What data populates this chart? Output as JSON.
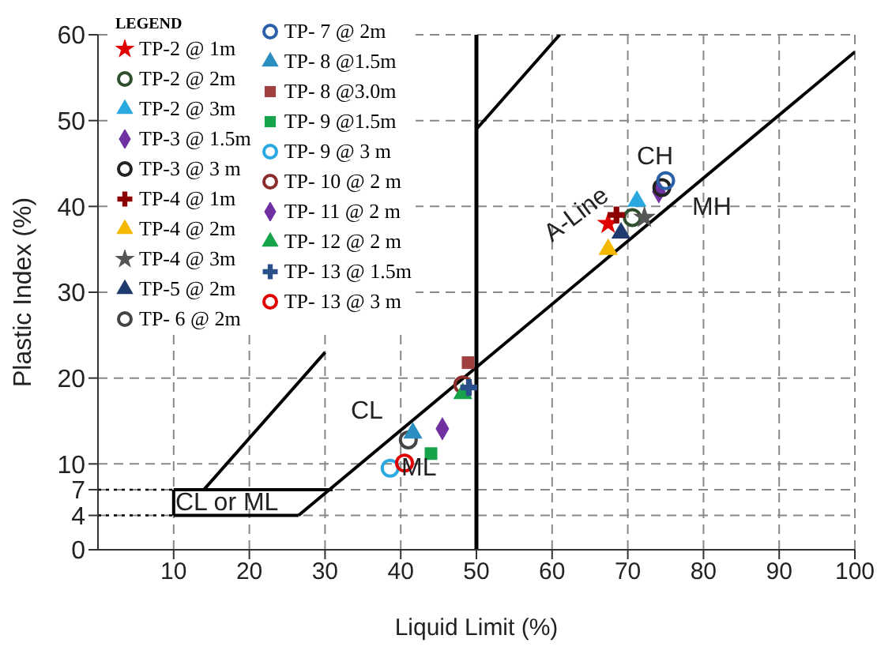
{
  "chart_data": {
    "type": "scatter",
    "xlabel": "Liquid Limit (%)",
    "ylabel": "Plastic Index (%)",
    "legend_title": "LEGEND",
    "legend": "top left",
    "grid": true,
    "xlim": [
      0,
      100
    ],
    "xticks": [
      10,
      20,
      30,
      40,
      50,
      60,
      70,
      80,
      90,
      100
    ],
    "ylim": [
      0,
      60
    ],
    "yticks": [
      0,
      4,
      7,
      10,
      20,
      30,
      40,
      50,
      60
    ],
    "series": [
      {
        "name": "TP-2 @ 1m",
        "color": "#e00000",
        "marker": "star",
        "x": [
          67.4
        ],
        "values": [
          38
        ]
      },
      {
        "name": "TP-2 @ 2m",
        "color": "#2f4f2f",
        "marker": "circle",
        "x": [
          70.6
        ],
        "values": [
          38.7
        ]
      },
      {
        "name": "TP-2 @ 3m",
        "color": "#29a9e0",
        "marker": "triangle",
        "x": [
          71.2
        ],
        "values": [
          40.6
        ]
      },
      {
        "name": "TP-3 @ 1.5m",
        "color": "#7030a0",
        "marker": "diamond",
        "x": [
          74.1
        ],
        "values": [
          41.7
        ]
      },
      {
        "name": "TP-3 @ 3 m",
        "color": "#222222",
        "marker": "circle",
        "x": [
          74.5
        ],
        "values": [
          42.2
        ]
      },
      {
        "name": "TP-4 @ 1m",
        "color": "#8b0000",
        "marker": "cross",
        "x": [
          68.5
        ],
        "values": [
          39
        ]
      },
      {
        "name": "TP-4 @ 2m",
        "color": "#f5b800",
        "marker": "triangle",
        "x": [
          67.4
        ],
        "values": [
          35
        ]
      },
      {
        "name": "TP-4 @ 3m",
        "color": "#555555",
        "marker": "star",
        "x": [
          72.2
        ],
        "values": [
          38.7
        ]
      },
      {
        "name": "TP-5 @ 2m",
        "color": "#1f3a6e",
        "marker": "triangle",
        "x": [
          69.1
        ],
        "values": [
          36.9
        ]
      },
      {
        "name": "TP- 6 @ 2m",
        "color": "#444444",
        "marker": "circle",
        "x": [
          41
        ],
        "values": [
          12.8
        ]
      },
      {
        "name": "TP- 7 @ 2m",
        "color": "#2b5fa8",
        "marker": "circle",
        "x": [
          75
        ],
        "values": [
          43
        ]
      },
      {
        "name": "TP- 8 @1.5m",
        "color": "#2a8fc0",
        "marker": "triangle",
        "x": [
          41.6
        ],
        "values": [
          13.6
        ]
      },
      {
        "name": "TP- 8 @3.0m",
        "color": "#a04040",
        "marker": "square",
        "x": [
          48.9
        ],
        "values": [
          21.8
        ]
      },
      {
        "name": "TP- 9 @1.5m",
        "color": "#16a34a",
        "marker": "square",
        "x": [
          44
        ],
        "values": [
          11.2
        ]
      },
      {
        "name": "TP- 9 @ 3 m",
        "color": "#29a9e0",
        "marker": "circle",
        "x": [
          38.6
        ],
        "values": [
          9.5
        ]
      },
      {
        "name": "TP- 10 @ 2 m",
        "color": "#8b2d2d",
        "marker": "circle",
        "x": [
          48.2
        ],
        "values": [
          19.2
        ]
      },
      {
        "name": "TP- 11 @ 2 m",
        "color": "#7030a0",
        "marker": "diamond",
        "x": [
          45.5
        ],
        "values": [
          14.1
        ]
      },
      {
        "name": "TP- 12 @ 2 m",
        "color": "#16a34a",
        "marker": "triangle",
        "x": [
          48.2
        ],
        "values": [
          18.2
        ]
      },
      {
        "name": "TP- 13 @ 1.5m",
        "color": "#2b4f8a",
        "marker": "cross",
        "x": [
          49
        ],
        "values": [
          18.9
        ]
      },
      {
        "name": "TP- 13 @ 3 m",
        "color": "#e00000",
        "marker": "circle",
        "x": [
          40.5
        ],
        "values": [
          10.1
        ]
      },
      {
        "type": "line",
        "color": "#000000",
        "line_style": "solid",
        "x": [
          26.5,
          100
        ],
        "values": [
          4,
          58
        ]
      },
      {
        "type": "line",
        "color": "#000000",
        "line_style": "solid",
        "x": [
          14,
          30,
          42,
          50,
          61
        ],
        "values": [
          7,
          23,
          null,
          49,
          60
        ]
      },
      {
        "type": "line",
        "color": "#000000",
        "line_style": "solid",
        "x": [
          10,
          31
        ],
        "values": [
          7,
          7
        ]
      },
      {
        "type": "line",
        "color": "#000000",
        "line_style": "solid",
        "x": [
          10,
          26.5
        ],
        "values": [
          4,
          4
        ]
      },
      {
        "type": "line",
        "color": "#000000",
        "line_style": "solid",
        "x": [
          10,
          10
        ],
        "values": [
          4,
          7
        ]
      },
      {
        "type": "line",
        "color": "#000000",
        "line_style": "dotted",
        "x": [
          0,
          10
        ],
        "values": [
          7,
          7
        ]
      },
      {
        "type": "line",
        "color": "#000000",
        "line_style": "dotted",
        "x": [
          0,
          10
        ],
        "values": [
          4,
          4
        ]
      }
    ],
    "ref_lines": [
      {
        "axis": "x",
        "value": 50,
        "color": "#000000"
      }
    ],
    "annotations": [
      "CL or ML",
      "CL",
      "ML",
      "CH",
      "MH",
      "A-Line"
    ]
  }
}
